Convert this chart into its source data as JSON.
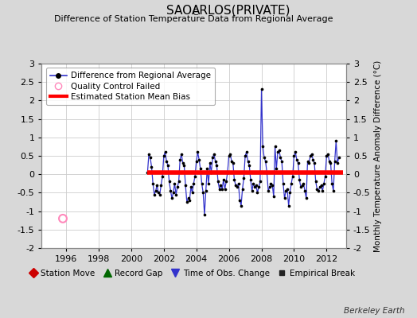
{
  "title1": "SAO",
  "title_sub": "C",
  "title2": "ARLOS(PRIVATE)",
  "subtitle": "Difference of Station Temperature Data from Regional Average",
  "ylabel": "Monthly Temperature Anomaly Difference (°C)",
  "xlim": [
    1994.5,
    2013.2
  ],
  "ylim": [
    -2.0,
    3.0
  ],
  "yticks": [
    -2,
    -1.5,
    -1,
    -0.5,
    0,
    0.5,
    1,
    1.5,
    2,
    2.5,
    3
  ],
  "xticks": [
    1996,
    1998,
    2000,
    2002,
    2004,
    2006,
    2008,
    2010,
    2012
  ],
  "bias_level": 0.05,
  "bias_color": "#ff0000",
  "line_color": "#3333cc",
  "dot_color": "#000000",
  "qc_failed_x": 1995.8,
  "qc_failed_y": -1.2,
  "background_color": "#d8d8d8",
  "plot_bg_color": "#ffffff",
  "grid_color": "#cccccc",
  "series_x": [
    2001.0,
    2001.083,
    2001.167,
    2001.25,
    2001.333,
    2001.417,
    2001.5,
    2001.583,
    2001.667,
    2001.75,
    2001.833,
    2001.917,
    2002.0,
    2002.083,
    2002.167,
    2002.25,
    2002.333,
    2002.417,
    2002.5,
    2002.583,
    2002.667,
    2002.75,
    2002.833,
    2002.917,
    2003.0,
    2003.083,
    2003.167,
    2003.25,
    2003.333,
    2003.417,
    2003.5,
    2003.583,
    2003.667,
    2003.75,
    2003.833,
    2003.917,
    2004.0,
    2004.083,
    2004.167,
    2004.25,
    2004.333,
    2004.417,
    2004.5,
    2004.583,
    2004.667,
    2004.75,
    2004.833,
    2004.917,
    2005.0,
    2005.083,
    2005.167,
    2005.25,
    2005.333,
    2005.417,
    2005.5,
    2005.583,
    2005.667,
    2005.75,
    2005.833,
    2005.917,
    2006.0,
    2006.083,
    2006.167,
    2006.25,
    2006.333,
    2006.417,
    2006.5,
    2006.583,
    2006.667,
    2006.75,
    2006.833,
    2006.917,
    2007.0,
    2007.083,
    2007.167,
    2007.25,
    2007.333,
    2007.417,
    2007.5,
    2007.583,
    2007.667,
    2007.75,
    2007.833,
    2007.917,
    2008.0,
    2008.083,
    2008.167,
    2008.25,
    2008.333,
    2008.417,
    2008.5,
    2008.583,
    2008.667,
    2008.75,
    2008.833,
    2008.917,
    2009.0,
    2009.083,
    2009.167,
    2009.25,
    2009.333,
    2009.417,
    2009.5,
    2009.583,
    2009.667,
    2009.75,
    2009.833,
    2009.917,
    2010.0,
    2010.083,
    2010.167,
    2010.25,
    2010.333,
    2010.417,
    2010.5,
    2010.583,
    2010.667,
    2010.75,
    2010.833,
    2010.917,
    2011.0,
    2011.083,
    2011.167,
    2011.25,
    2011.333,
    2011.417,
    2011.5,
    2011.583,
    2011.667,
    2011.75,
    2011.833,
    2011.917,
    2012.0,
    2012.083,
    2012.167,
    2012.25,
    2012.333,
    2012.417,
    2012.5,
    2012.583,
    2012.667,
    2012.75
  ],
  "series_y": [
    0.05,
    0.55,
    0.45,
    0.2,
    -0.25,
    -0.55,
    -0.45,
    -0.3,
    -0.5,
    -0.55,
    -0.3,
    -0.05,
    0.5,
    0.6,
    0.35,
    0.25,
    -0.2,
    -0.45,
    -0.65,
    -0.5,
    -0.25,
    -0.55,
    -0.35,
    -0.2,
    0.4,
    0.55,
    0.3,
    0.25,
    -0.3,
    -0.75,
    -0.65,
    -0.7,
    -0.35,
    -0.5,
    -0.25,
    -0.05,
    0.35,
    0.6,
    0.4,
    0.15,
    -0.25,
    -0.5,
    -1.1,
    -0.45,
    0.15,
    -0.25,
    0.3,
    0.05,
    0.45,
    0.55,
    0.35,
    0.25,
    -0.2,
    -0.4,
    -0.3,
    -0.4,
    -0.15,
    -0.4,
    -0.2,
    0.05,
    0.5,
    0.55,
    0.35,
    0.3,
    -0.15,
    -0.3,
    -0.35,
    -0.25,
    -0.7,
    -0.85,
    -0.4,
    -0.1,
    0.5,
    0.6,
    0.35,
    0.25,
    -0.15,
    -0.45,
    -0.25,
    -0.35,
    -0.3,
    -0.5,
    -0.35,
    -0.2,
    2.3,
    0.75,
    0.45,
    0.35,
    0.05,
    -0.45,
    -0.35,
    -0.25,
    -0.3,
    -0.6,
    0.75,
    0.15,
    0.6,
    0.65,
    0.45,
    0.35,
    -0.25,
    -0.65,
    -0.45,
    -0.4,
    -0.85,
    -0.5,
    -0.25,
    -0.05,
    0.5,
    0.6,
    0.4,
    0.3,
    -0.15,
    -0.35,
    -0.3,
    -0.25,
    -0.45,
    -0.65,
    0.35,
    0.3,
    0.5,
    0.55,
    0.4,
    0.3,
    -0.2,
    -0.4,
    -0.45,
    -0.35,
    -0.3,
    -0.45,
    -0.25,
    -0.05,
    0.5,
    0.55,
    0.35,
    0.3,
    -0.25,
    -0.45,
    0.35,
    0.9,
    0.3,
    0.45
  ],
  "bias_x_start": 2001.0,
  "bias_x_end": 2013.0,
  "footer_text": "Berkeley Earth"
}
